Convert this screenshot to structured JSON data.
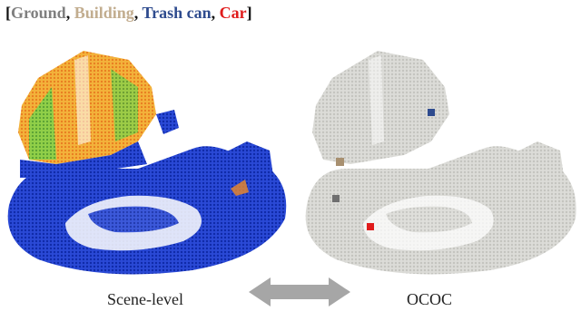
{
  "legend": {
    "open": "[",
    "close": "]",
    "separator": ", ",
    "items": [
      {
        "label": "Ground",
        "color": "#7f7f7f"
      },
      {
        "label": "Building",
        "color": "#c2ad8f"
      },
      {
        "label": "Trash can",
        "color": "#2e4b8e"
      },
      {
        "label": "Car",
        "color": "#e01b1b"
      }
    ]
  },
  "panels": {
    "left": {
      "caption": "Scene-level"
    },
    "right": {
      "caption": "OCOC"
    }
  },
  "colors": {
    "cloud_gray": "#d4d4d0",
    "cloud_blue": "#1f3ec9",
    "arrow": "#a6a6a6",
    "heat_yellow": "#f1c232",
    "heat_orange": "#f08a24",
    "heat_green": "#6ccf3a"
  },
  "icons": {
    "arrow": "double-headed-arrow"
  }
}
